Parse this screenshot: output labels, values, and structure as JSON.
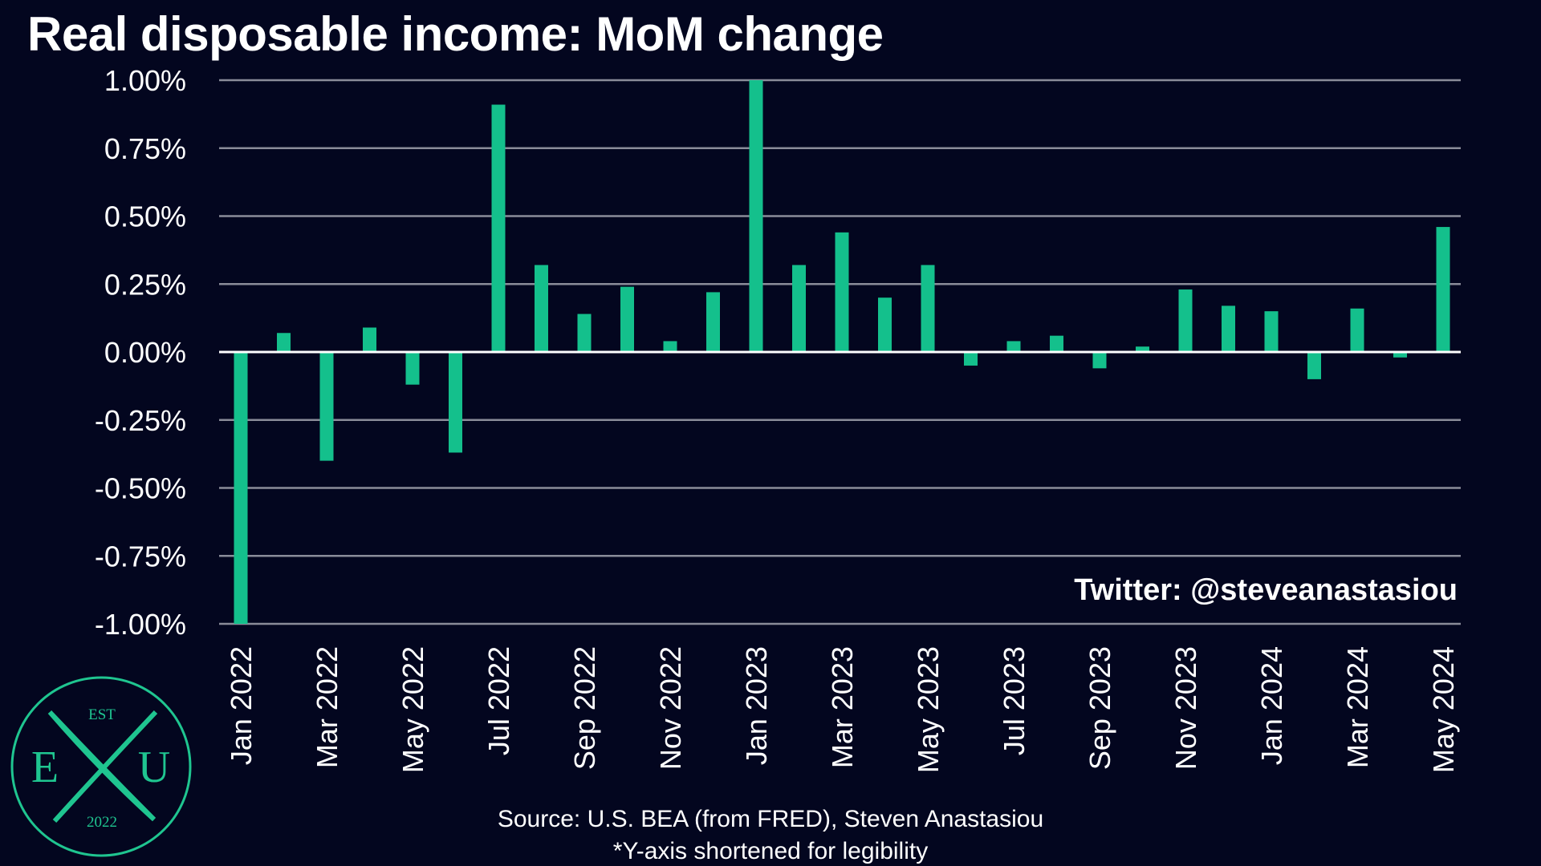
{
  "title": "Real disposable income: MoM change",
  "credit": "Twitter: @steveanastasiou",
  "source_line1": "Source: U.S. BEA (from FRED), Steven Anastasiou",
  "source_line2": "*Y-axis shortened for legibility",
  "logo": {
    "top": "EST",
    "left": "E",
    "right": "U",
    "bottom": "2022",
    "accent": "#1fc590"
  },
  "colors": {
    "background": "#03061f",
    "bar": "#14c08c",
    "grid": "#8a8c99",
    "text": "#ffffff"
  },
  "chart_data": {
    "type": "bar",
    "categories": [
      "Jan 2022",
      "Feb 2022",
      "Mar 2022",
      "Apr 2022",
      "May 2022",
      "Jun 2022",
      "Jul 2022",
      "Aug 2022",
      "Sep 2022",
      "Oct 2022",
      "Nov 2022",
      "Dec 2022",
      "Jan 2023",
      "Feb 2023",
      "Mar 2023",
      "Apr 2023",
      "May 2023",
      "Jun 2023",
      "Jul 2023",
      "Aug 2023",
      "Sep 2023",
      "Oct 2023",
      "Nov 2023",
      "Dec 2023",
      "Jan 2024",
      "Feb 2024",
      "Mar 2024",
      "Apr 2024",
      "May 2024"
    ],
    "values": [
      -1.0,
      0.07,
      -0.4,
      0.09,
      -0.12,
      -0.37,
      0.91,
      0.32,
      0.14,
      0.24,
      0.04,
      0.22,
      1.0,
      0.32,
      0.44,
      0.2,
      0.32,
      -0.05,
      0.04,
      0.06,
      -0.06,
      0.02,
      0.23,
      0.17,
      0.15,
      -0.1,
      0.16,
      -0.02,
      0.46
    ],
    "x_tick_labels": [
      "Jan 2022",
      "Mar 2022",
      "May 2022",
      "Jul 2022",
      "Sep 2022",
      "Nov 2022",
      "Jan 2023",
      "Mar 2023",
      "May 2023",
      "Jul 2023",
      "Sep 2023",
      "Nov 2023",
      "Jan 2024",
      "Mar 2024",
      "May 2024"
    ],
    "y_tick_labels": [
      "1.00%",
      "0.75%",
      "0.50%",
      "0.25%",
      "0.00%",
      "-0.25%",
      "-0.50%",
      "-0.75%",
      "-1.00%"
    ],
    "ylim": [
      -1.0,
      1.0
    ],
    "unit": "%",
    "grid": true,
    "xlabel": "",
    "ylabel": ""
  }
}
